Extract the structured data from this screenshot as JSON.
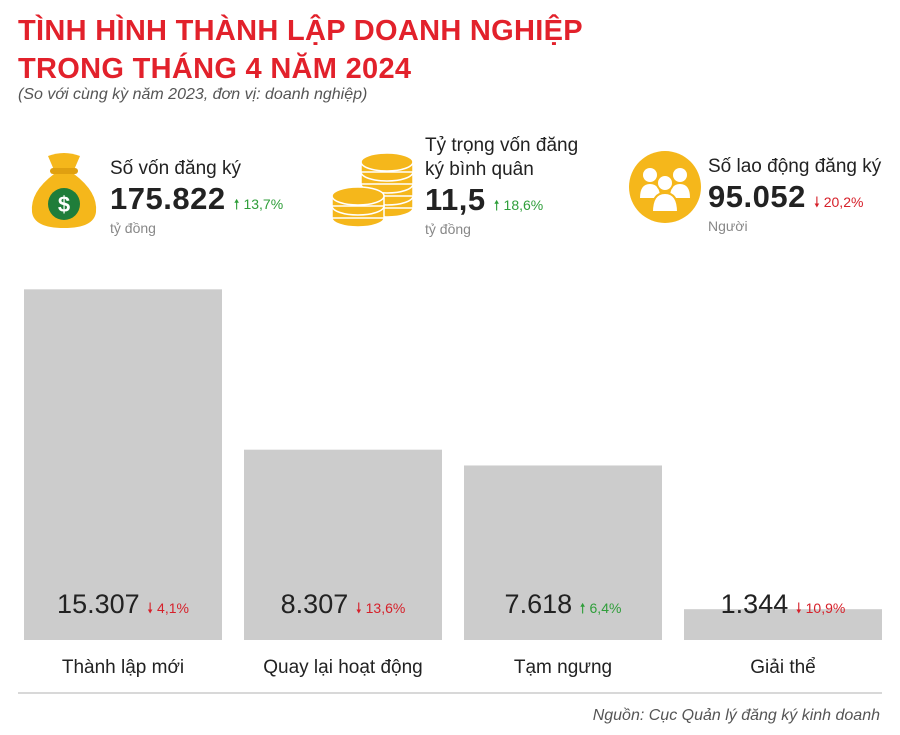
{
  "header": {
    "title_line1": "TÌNH HÌNH THÀNH LẬP DOANH NGHIỆP",
    "title_line2": "TRONG THÁNG 4 NĂM 2024",
    "subtitle": "(So với cùng kỳ năm 2023, đơn vị: doanh nghiệp)"
  },
  "stats": [
    {
      "label_line1": "Số vốn đăng ký",
      "label_line2": "",
      "value": "175.822",
      "change": "13,7%",
      "direction": "up",
      "unit": "tỷ đồng",
      "icon": "money-bag-icon"
    },
    {
      "label_line1": "Tỷ trọng vốn đăng",
      "label_line2": "ký bình quân",
      "value": "11,5",
      "change": "18,6%",
      "direction": "up",
      "unit": "tỷ đồng",
      "icon": "coins-icon"
    },
    {
      "label_line1": "Số lao động đăng ký",
      "label_line2": "",
      "value": "95.052",
      "change": "20,2%",
      "direction": "down",
      "unit": "Người",
      "icon": "people-icon"
    }
  ],
  "chart_data": {
    "type": "bar",
    "categories": [
      "Thành lập mới",
      "Quay lại hoạt động",
      "Tạm ngưng",
      "Giải thể"
    ],
    "values": [
      15307,
      8307,
      7618,
      1344
    ],
    "value_labels": [
      "15.307",
      "8.307",
      "7.618",
      "1.344"
    ],
    "changes": [
      {
        "text": "4,1%",
        "direction": "down"
      },
      {
        "text": "13,6%",
        "direction": "down"
      },
      {
        "text": "6,4%",
        "direction": "up"
      },
      {
        "text": "10,9%",
        "direction": "down"
      }
    ],
    "ylim": [
      0,
      16500
    ],
    "grid": false,
    "bar_color": "#cccccc"
  },
  "colors": {
    "title": "#e2212b",
    "icon": "#f5b71b",
    "up": "#2f9e3a",
    "down": "#d6202a"
  },
  "source": "Nguồn: Cục Quản lý đăng ký kinh doanh"
}
